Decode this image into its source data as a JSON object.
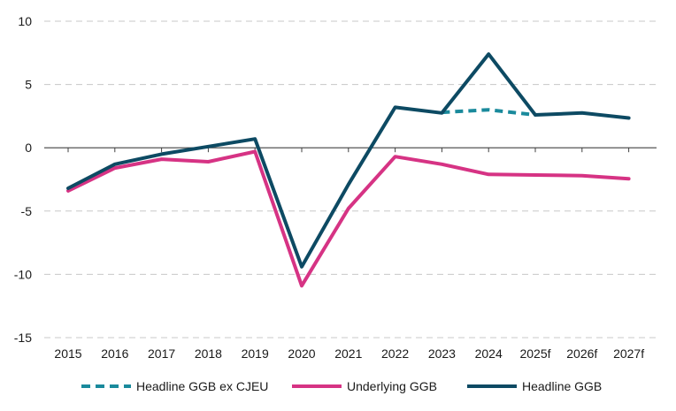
{
  "chart_data": {
    "type": "line",
    "title": "",
    "xlabel": "",
    "ylabel": "",
    "categories": [
      "2015",
      "2016",
      "2017",
      "2018",
      "2019",
      "2020",
      "2021",
      "2022",
      "2023",
      "2024",
      "2025f",
      "2026f",
      "2027f"
    ],
    "ylim": [
      -15,
      10
    ],
    "yticks": [
      10,
      5,
      0,
      -5,
      -10,
      -15
    ],
    "grid": "horizontal-dashed",
    "legend_position": "bottom",
    "series": [
      {
        "name": "Headline GGB ex CJEU",
        "color": "#1a8a9c",
        "style": "dashed",
        "values": [
          null,
          null,
          null,
          null,
          null,
          null,
          null,
          null,
          2.8,
          3.0,
          2.6,
          null,
          null
        ]
      },
      {
        "name": "Underlying GGB",
        "color": "#d63384",
        "style": "solid",
        "values": [
          -3.4,
          -1.6,
          -0.9,
          -1.1,
          -0.3,
          -10.9,
          -4.8,
          -0.7,
          -1.3,
          -2.1,
          -2.15,
          -2.2,
          -2.45
        ]
      },
      {
        "name": "Headline GGB",
        "color": "#0d4a63",
        "style": "solid",
        "values": [
          -3.2,
          -1.3,
          -0.5,
          0.1,
          0.7,
          -9.4,
          -2.9,
          3.2,
          2.75,
          7.4,
          2.6,
          2.75,
          2.35
        ]
      }
    ]
  }
}
